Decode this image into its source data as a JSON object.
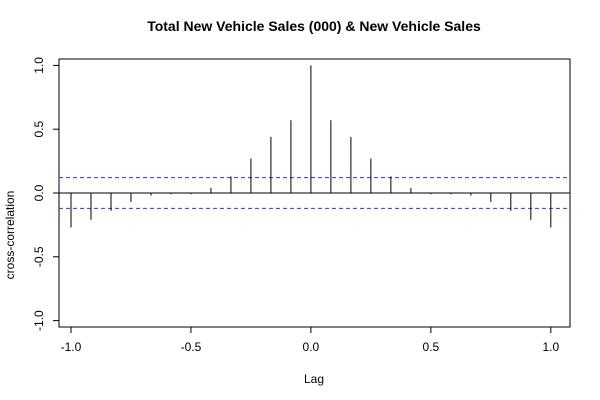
{
  "chart_data": {
    "type": "bar",
    "title": "Total New Vehicle Sales (000) & New Vehicle Sales",
    "xlabel": "Lag",
    "ylabel": "cross-correlation",
    "xlim": [
      -1.05,
      1.08
    ],
    "ylim": [
      -1.05,
      1.05
    ],
    "x_ticks": [
      -1.0,
      -0.5,
      0.0,
      0.5,
      1.0
    ],
    "x_tick_labels": [
      "-1.0",
      "-0.5",
      "0.0",
      "0.5",
      "1.0"
    ],
    "y_ticks": [
      -1.0,
      -0.5,
      0.0,
      0.5,
      1.0
    ],
    "y_tick_labels": [
      "-1.0",
      "-0.5",
      "0.0",
      "0.5",
      "1.0"
    ],
    "lags": [
      -1.0,
      -0.9167,
      -0.8333,
      -0.75,
      -0.6667,
      -0.5833,
      -0.5,
      -0.4167,
      -0.3333,
      -0.25,
      -0.1667,
      -0.0833,
      0.0,
      0.0833,
      0.1667,
      0.25,
      0.3333,
      0.4167,
      0.5,
      0.5833,
      0.6667,
      0.75,
      0.8333,
      0.9167,
      1.0
    ],
    "values": [
      -0.27,
      -0.21,
      -0.14,
      -0.07,
      -0.02,
      -0.01,
      -0.01,
      0.04,
      0.13,
      0.27,
      0.44,
      0.57,
      1.0,
      0.57,
      0.44,
      0.27,
      0.13,
      0.04,
      -0.01,
      -0.01,
      -0.02,
      -0.07,
      -0.14,
      -0.21,
      -0.27
    ],
    "confidence_bound": 0.12,
    "colors": {
      "bounds": "#3333ff",
      "spikes": "#000000",
      "zero_line": "#000000"
    },
    "grid": false
  }
}
